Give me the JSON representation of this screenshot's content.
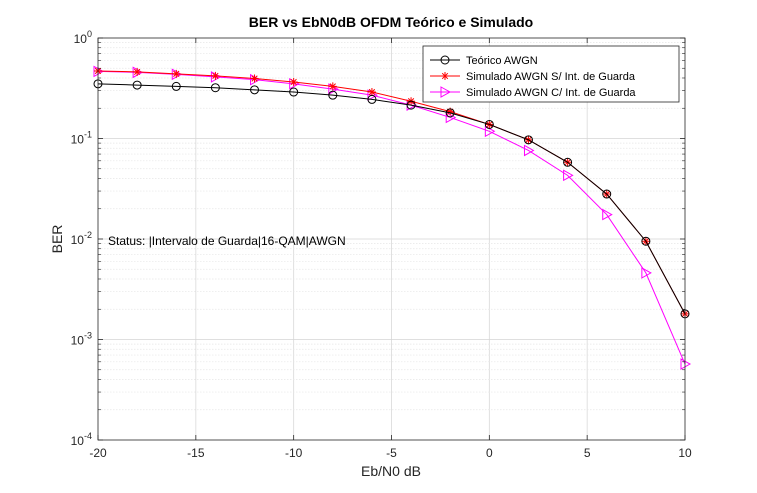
{
  "chart_data": {
    "type": "line",
    "title": "BER vs EbN0dB OFDM Teórico e Simulado",
    "xlabel": "Eb/N0 dB",
    "ylabel": "BER",
    "xlim": [
      -20,
      10
    ],
    "ylim": [
      0.0001,
      1
    ],
    "yscale": "log",
    "grid": true,
    "legend_position": "top-right",
    "x_ticks": [
      "-20",
      "-15",
      "-10",
      "-5",
      "0",
      "5",
      "10"
    ],
    "y_ticks": [
      {
        "base": "10",
        "exp": "0"
      },
      {
        "base": "10",
        "exp": "-1"
      },
      {
        "base": "10",
        "exp": "-2"
      },
      {
        "base": "10",
        "exp": "-3"
      },
      {
        "base": "10",
        "exp": "-4"
      }
    ],
    "annotation": "Status: |Intervalo de Guarda|16-QAM|AWGN",
    "x": [
      -20,
      -18,
      -16,
      -14,
      -12,
      -10,
      -8,
      -6,
      -4,
      -2,
      0,
      2,
      4,
      6,
      8,
      10
    ],
    "series": [
      {
        "name": "Teórico AWGN",
        "color": "#000000",
        "marker": "circle",
        "values": [
          0.35,
          0.34,
          0.33,
          0.32,
          0.305,
          0.29,
          0.27,
          0.245,
          0.215,
          0.18,
          0.138,
          0.097,
          0.058,
          0.028,
          0.0095,
          0.0018
        ]
      },
      {
        "name": "Simulado AWGN S/ Int. de Guarda",
        "color": "#ff0000",
        "marker": "asterisk",
        "values": [
          0.47,
          0.46,
          0.44,
          0.42,
          0.395,
          0.365,
          0.33,
          0.29,
          0.235,
          0.185,
          0.138,
          0.097,
          0.058,
          0.028,
          0.0095,
          0.0018
        ]
      },
      {
        "name": "Simulado AWGN C/ Int. de Guarda",
        "color": "#ff00ff",
        "marker": "triangle-right",
        "values": [
          0.465,
          0.455,
          0.435,
          0.41,
          0.385,
          0.35,
          0.31,
          0.27,
          0.215,
          0.162,
          0.118,
          0.076,
          0.043,
          0.0175,
          0.0046,
          0.00057
        ]
      }
    ]
  }
}
